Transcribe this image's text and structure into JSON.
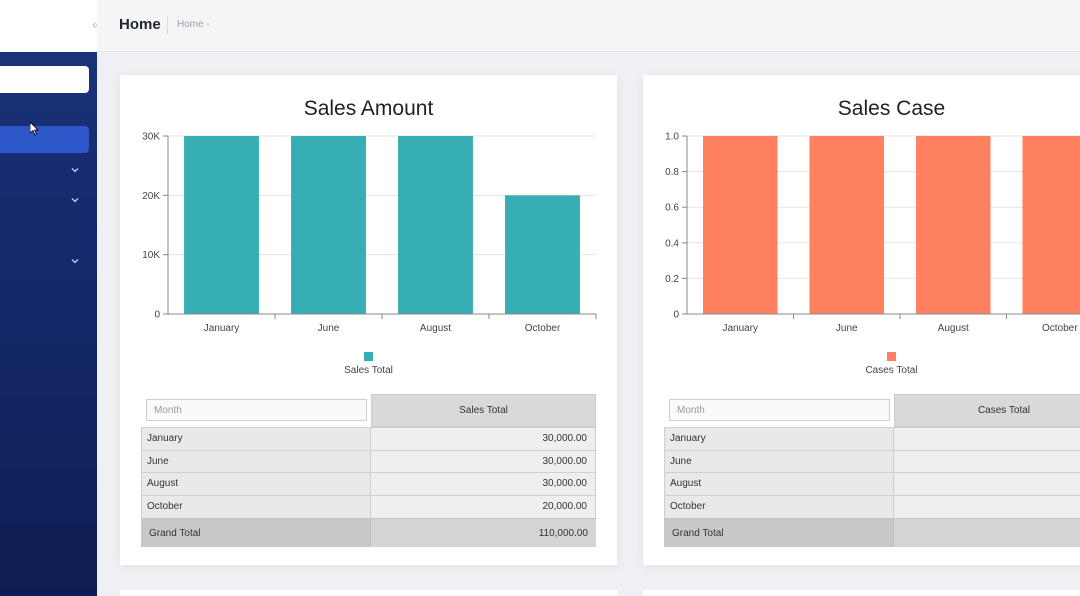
{
  "header": {
    "title": "Home",
    "breadcrumb": "Home -"
  },
  "sidebar": {
    "collapse_icon": "«"
  },
  "charts": [
    {
      "title": "Sales Amount",
      "color": "#36aeb3",
      "legend_label": "Sales Total",
      "y_ticks": [
        "0",
        "10K",
        "20K",
        "30K"
      ],
      "table": {
        "filter_placeholder": "Month",
        "value_header": "Sales Total",
        "rows": [
          {
            "month": "January",
            "value": "30,000.00"
          },
          {
            "month": "June",
            "value": "30,000.00"
          },
          {
            "month": "August",
            "value": "30,000.00"
          },
          {
            "month": "October",
            "value": "20,000.00"
          }
        ],
        "total_label": "Grand Total",
        "total_value": "110,000.00"
      }
    },
    {
      "title": "Sales Case",
      "color": "#ff8160",
      "legend_label": "Cases Total",
      "y_ticks": [
        "0",
        "0.2",
        "0.4",
        "0.6",
        "0.8",
        "1.0"
      ],
      "table": {
        "filter_placeholder": "Month",
        "value_header": "Cases Total",
        "rows": [
          {
            "month": "January",
            "value": ""
          },
          {
            "month": "June",
            "value": ""
          },
          {
            "month": "August",
            "value": ""
          },
          {
            "month": "October",
            "value": ""
          }
        ],
        "total_label": "Grand Total",
        "total_value": ""
      }
    }
  ],
  "chart_data": [
    {
      "type": "bar",
      "title": "Sales Amount",
      "categories": [
        "January",
        "June",
        "August",
        "October"
      ],
      "series": [
        {
          "name": "Sales Total",
          "values": [
            30000,
            30000,
            30000,
            20000
          ]
        }
      ],
      "ylim": [
        0,
        30000
      ],
      "grid": true,
      "legend": "bottom"
    },
    {
      "type": "bar",
      "title": "Sales Case",
      "categories": [
        "January",
        "June",
        "August",
        "October"
      ],
      "series": [
        {
          "name": "Cases Total",
          "values": [
            1,
            1,
            1,
            1
          ]
        }
      ],
      "ylim": [
        0,
        1
      ],
      "grid": true,
      "legend": "bottom"
    }
  ]
}
